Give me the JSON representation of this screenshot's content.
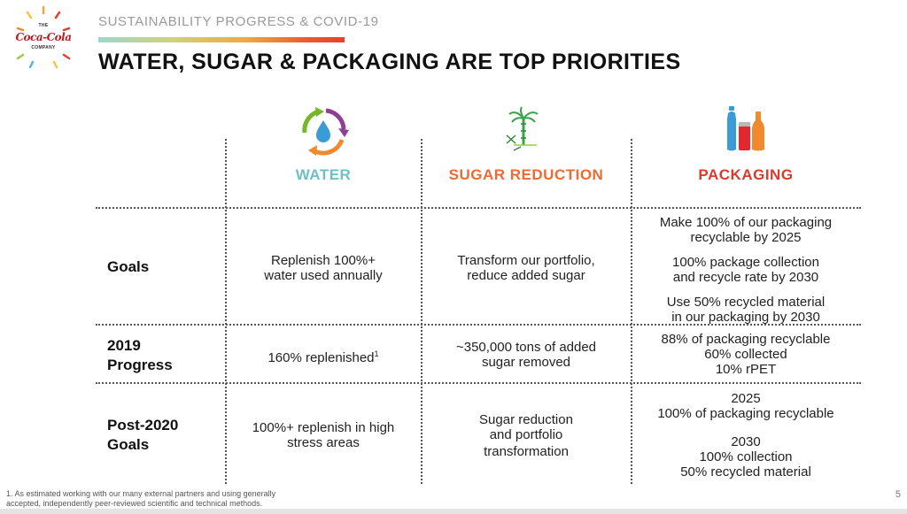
{
  "header": {
    "logo_top": "THE",
    "logo_brand": "Coca-Cola",
    "logo_bottom": "COMPANY",
    "eyebrow": "SUSTAINABILITY PROGRESS & COVID-19",
    "title": "WATER, SUGAR & PACKAGING ARE TOP PRIORITIES"
  },
  "columns": [
    {
      "label": "WATER",
      "color": "#6fbfc4",
      "icon": "water-cycle-icon"
    },
    {
      "label": "SUGAR REDUCTION",
      "color": "#ec6a35",
      "icon": "sugarcane-icon"
    },
    {
      "label": "PACKAGING",
      "color": "#d93a30",
      "icon": "bottles-icon"
    }
  ],
  "rows": {
    "goals": {
      "label": "Goals",
      "water": [
        "Replenish 100%+",
        "water used annually"
      ],
      "sugar": [
        "Transform our portfolio,",
        "reduce added sugar"
      ],
      "packaging": [
        "Make 100% of our packaging",
        "recyclable by 2025",
        "100% package collection",
        "and recycle rate by 2030",
        "Use 50% recycled material",
        "in our packaging by 2030"
      ]
    },
    "progress_2019": {
      "label_1": "2019",
      "label_2": "Progress",
      "water": "160% replenished",
      "water_sup": "1",
      "sugar": [
        "~350,000 tons of added",
        "sugar removed"
      ],
      "packaging": [
        "88% of packaging recyclable",
        "60% collected",
        "10% rPET"
      ]
    },
    "post_2020": {
      "label_1": "Post-2020",
      "label_2": "Goals",
      "water": [
        "100%+ replenish in high",
        "stress areas"
      ],
      "sugar": [
        "Sugar reduction",
        "and portfolio",
        "transformation"
      ],
      "packaging": [
        "2025",
        "100% of packaging recyclable",
        "2030",
        "100% collection",
        "50% recycled material"
      ]
    }
  },
  "footer": {
    "footnote_1": "1. As estimated working with our many external partners and using generally",
    "footnote_2": "accepted, independently peer-reviewed scientific and technical methods.",
    "page_number": "5"
  }
}
